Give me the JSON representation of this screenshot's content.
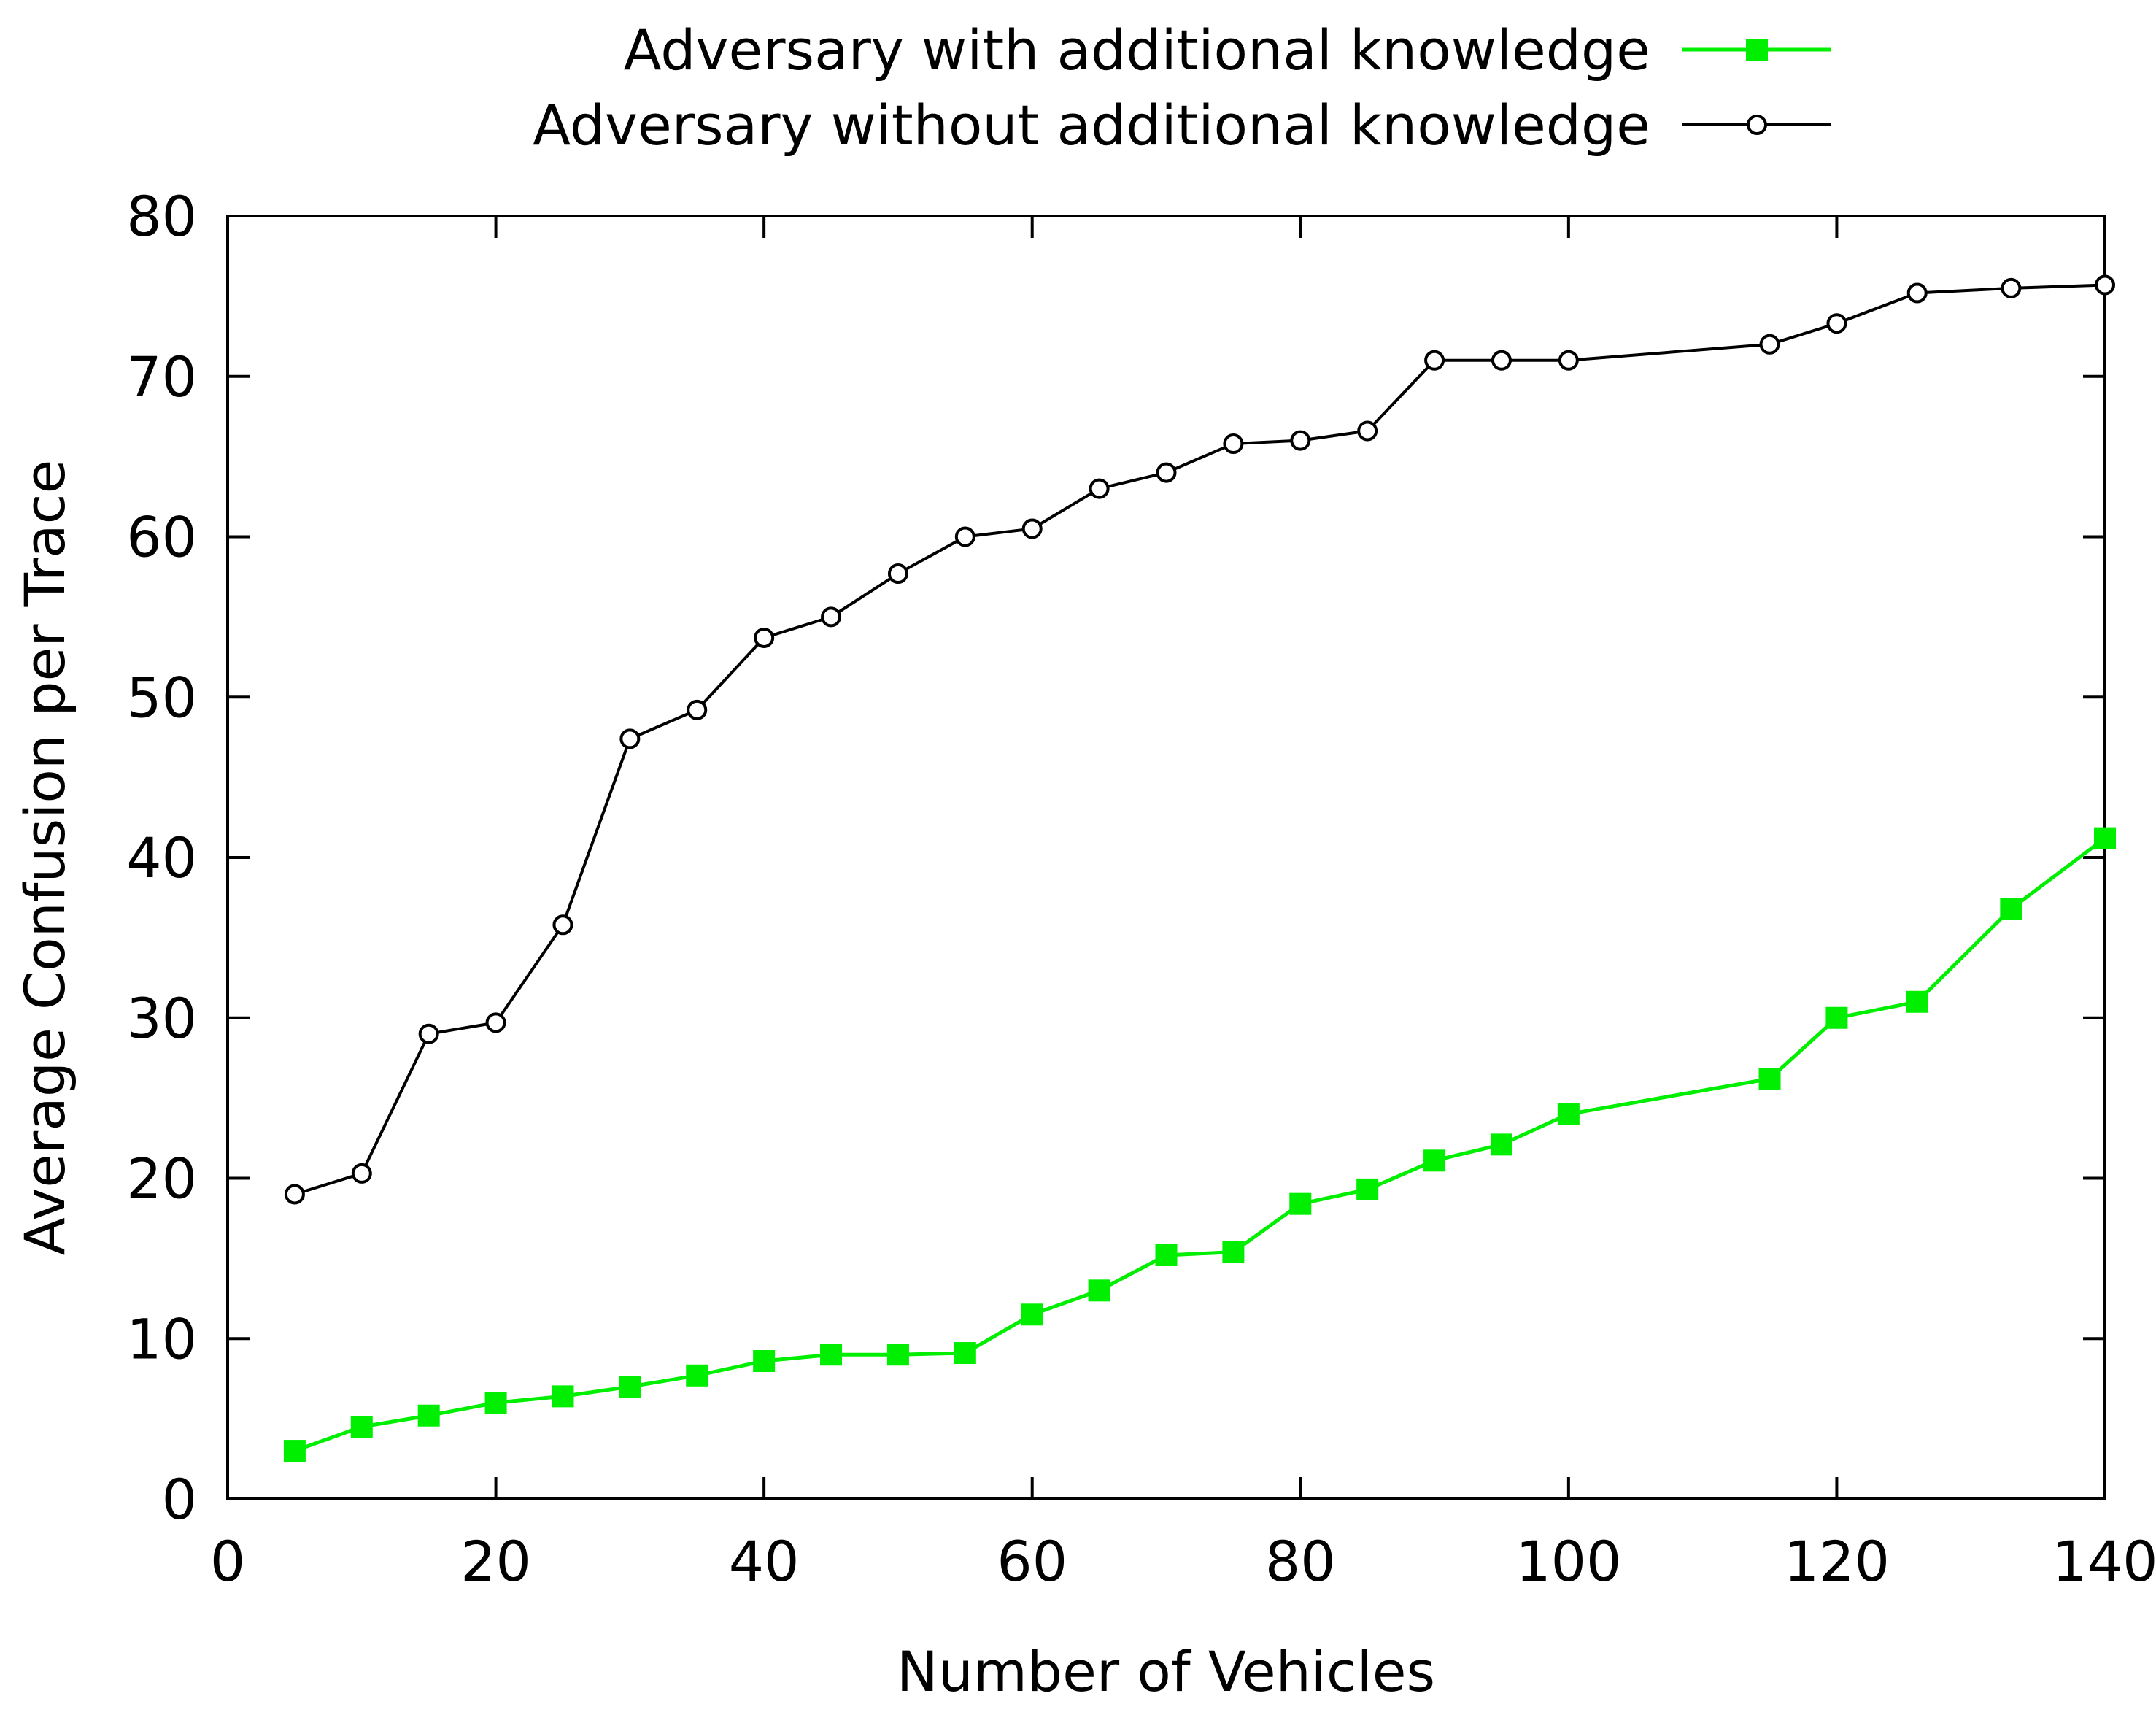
{
  "chart_data": {
    "type": "line",
    "title": "",
    "xlabel": "Number of Vehicles",
    "ylabel": "Average Confusion per Trace",
    "xlim": [
      0,
      140
    ],
    "ylim": [
      0,
      80
    ],
    "xticks": [
      0,
      20,
      40,
      60,
      80,
      100,
      120,
      140
    ],
    "yticks": [
      0,
      10,
      20,
      30,
      40,
      50,
      60,
      70,
      80
    ],
    "legend_position": "top-right",
    "grid": false,
    "series": [
      {
        "name": "Adversary with additional knowledge",
        "color": "#00ee00",
        "marker": "filled-square",
        "x": [
          5,
          10,
          15,
          20,
          25,
          30,
          35,
          40,
          45,
          50,
          55,
          60,
          65,
          70,
          75,
          80,
          85,
          90,
          95,
          100,
          115,
          120,
          126,
          133,
          140
        ],
        "y": [
          3.0,
          4.5,
          5.2,
          6.0,
          6.4,
          7.0,
          7.7,
          8.6,
          9.0,
          9.0,
          9.1,
          11.5,
          13.0,
          15.2,
          15.4,
          18.4,
          19.3,
          21.1,
          22.1,
          24.0,
          26.2,
          30.0,
          31.0,
          36.8,
          41.2
        ]
      },
      {
        "name": "Adversary without additional knowledge",
        "color": "#000000",
        "marker": "open-circle",
        "x": [
          5,
          10,
          15,
          20,
          25,
          30,
          35,
          40,
          45,
          50,
          55,
          60,
          65,
          70,
          75,
          80,
          85,
          90,
          95,
          100,
          115,
          120,
          126,
          133,
          140
        ],
        "y": [
          19.0,
          20.3,
          29.0,
          29.7,
          35.8,
          47.4,
          49.2,
          53.7,
          55.0,
          57.7,
          60.0,
          60.5,
          63.0,
          64.0,
          65.8,
          66.0,
          66.6,
          71.0,
          71.0,
          71.0,
          72.0,
          73.3,
          75.2,
          75.5,
          75.7
        ]
      }
    ]
  }
}
